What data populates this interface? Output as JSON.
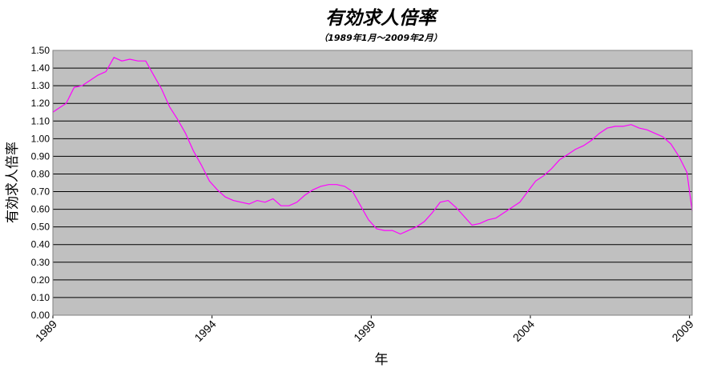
{
  "chart_data": {
    "type": "line",
    "title": "有効求人倍率",
    "subtitle": "（1989年1月～2009年2月）",
    "xlabel": "年",
    "ylabel": "有効求人倍率",
    "x_ticks": [
      "1989",
      "1994",
      "1999",
      "2004",
      "2009"
    ],
    "y_ticks": [
      "0.00",
      "0.10",
      "0.20",
      "0.30",
      "0.40",
      "0.50",
      "0.60",
      "0.70",
      "0.80",
      "0.90",
      "1.00",
      "1.10",
      "1.20",
      "1.30",
      "1.40",
      "1.50"
    ],
    "xlim": [
      "1989-01",
      "2009-02"
    ],
    "ylim": [
      0.0,
      1.5
    ],
    "grid": true,
    "series": [
      {
        "color": "#ff00ff",
        "points": [
          [
            "1989-01",
            1.15
          ],
          [
            "1989-03",
            1.17
          ],
          [
            "1989-06",
            1.2
          ],
          [
            "1989-09",
            1.29
          ],
          [
            "1989-12",
            1.3
          ],
          [
            "1990-03",
            1.33
          ],
          [
            "1990-06",
            1.36
          ],
          [
            "1990-09",
            1.38
          ],
          [
            "1990-12",
            1.46
          ],
          [
            "1991-03",
            1.44
          ],
          [
            "1991-06",
            1.45
          ],
          [
            "1991-09",
            1.44
          ],
          [
            "1991-12",
            1.44
          ],
          [
            "1992-03",
            1.36
          ],
          [
            "1992-06",
            1.28
          ],
          [
            "1992-09",
            1.18
          ],
          [
            "1992-12",
            1.11
          ],
          [
            "1993-03",
            1.03
          ],
          [
            "1993-06",
            0.93
          ],
          [
            "1993-09",
            0.85
          ],
          [
            "1993-12",
            0.76
          ],
          [
            "1994-03",
            0.71
          ],
          [
            "1994-06",
            0.67
          ],
          [
            "1994-09",
            0.65
          ],
          [
            "1994-12",
            0.64
          ],
          [
            "1995-03",
            0.63
          ],
          [
            "1995-06",
            0.65
          ],
          [
            "1995-09",
            0.64
          ],
          [
            "1995-12",
            0.66
          ],
          [
            "1996-03",
            0.62
          ],
          [
            "1996-06",
            0.62
          ],
          [
            "1996-09",
            0.64
          ],
          [
            "1996-12",
            0.68
          ],
          [
            "1997-03",
            0.71
          ],
          [
            "1997-06",
            0.73
          ],
          [
            "1997-09",
            0.74
          ],
          [
            "1997-12",
            0.74
          ],
          [
            "1998-03",
            0.73
          ],
          [
            "1998-06",
            0.7
          ],
          [
            "1998-09",
            0.62
          ],
          [
            "1998-12",
            0.54
          ],
          [
            "1999-03",
            0.49
          ],
          [
            "1999-06",
            0.48
          ],
          [
            "1999-09",
            0.48
          ],
          [
            "1999-12",
            0.46
          ],
          [
            "2000-03",
            0.48
          ],
          [
            "2000-06",
            0.5
          ],
          [
            "2000-09",
            0.53
          ],
          [
            "2000-12",
            0.58
          ],
          [
            "2001-03",
            0.64
          ],
          [
            "2001-06",
            0.65
          ],
          [
            "2001-09",
            0.61
          ],
          [
            "2001-12",
            0.56
          ],
          [
            "2002-03",
            0.51
          ],
          [
            "2002-06",
            0.52
          ],
          [
            "2002-09",
            0.54
          ],
          [
            "2002-12",
            0.55
          ],
          [
            "2003-03",
            0.58
          ],
          [
            "2003-06",
            0.61
          ],
          [
            "2003-09",
            0.64
          ],
          [
            "2003-12",
            0.7
          ],
          [
            "2004-03",
            0.76
          ],
          [
            "2004-06",
            0.79
          ],
          [
            "2004-09",
            0.83
          ],
          [
            "2004-12",
            0.88
          ],
          [
            "2005-03",
            0.91
          ],
          [
            "2005-06",
            0.94
          ],
          [
            "2005-09",
            0.96
          ],
          [
            "2005-12",
            0.99
          ],
          [
            "2006-03",
            1.03
          ],
          [
            "2006-06",
            1.06
          ],
          [
            "2006-09",
            1.07
          ],
          [
            "2006-12",
            1.07
          ],
          [
            "2007-03",
            1.08
          ],
          [
            "2007-06",
            1.06
          ],
          [
            "2007-09",
            1.05
          ],
          [
            "2007-12",
            1.03
          ],
          [
            "2008-03",
            1.01
          ],
          [
            "2008-06",
            0.97
          ],
          [
            "2008-09",
            0.9
          ],
          [
            "2008-12",
            0.81
          ],
          [
            "2009-02",
            0.59
          ]
        ]
      }
    ]
  },
  "colors": {
    "plot_background": "#c0c0c0",
    "grid": "#000000",
    "line": "#ff00ff"
  }
}
